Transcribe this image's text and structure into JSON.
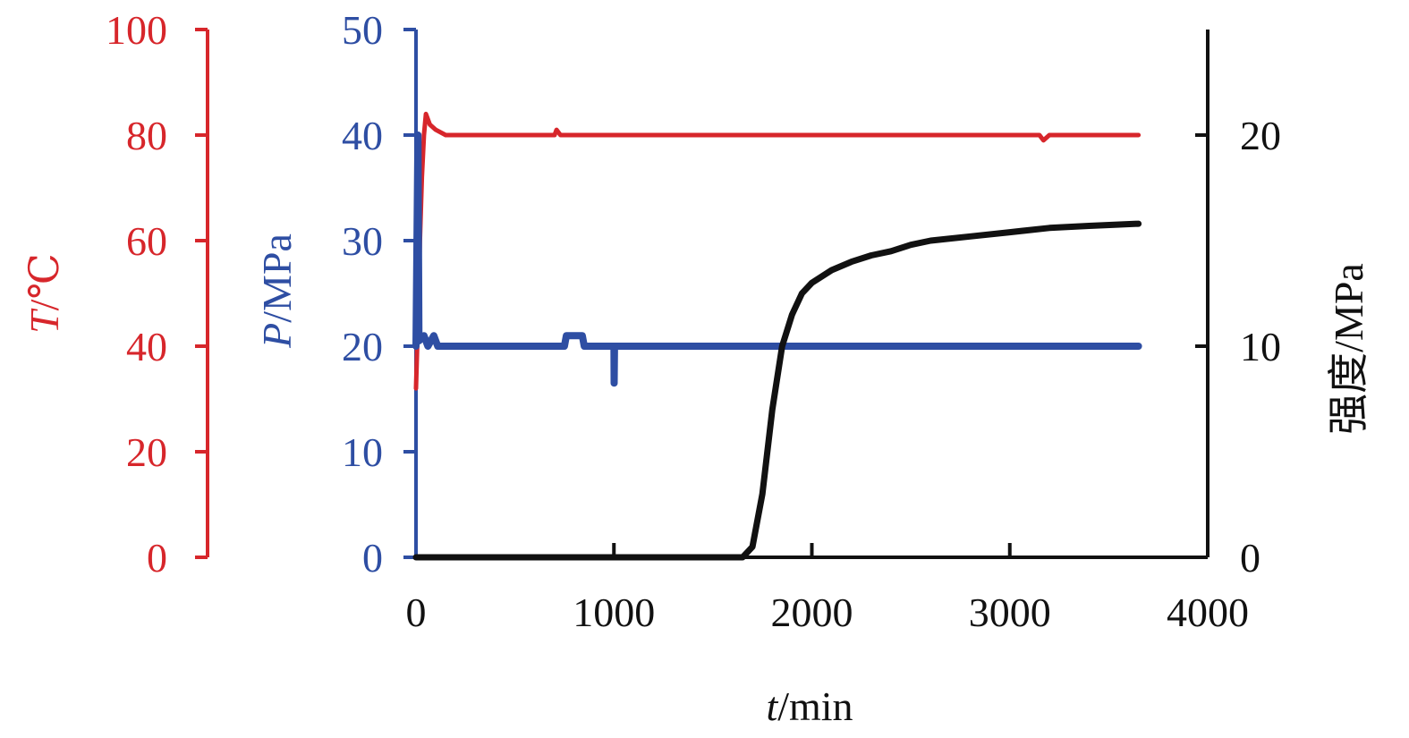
{
  "chart_data": {
    "type": "line",
    "x_axis": {
      "label_italic": "t",
      "label_unit": "/min",
      "range": [
        0,
        4000
      ],
      "ticks": [
        "0",
        "1000",
        "2000",
        "3000",
        "4000"
      ]
    },
    "axes": {
      "temperature": {
        "label_italic": "T",
        "label_unit": "/℃",
        "range": [
          0,
          100
        ],
        "ticks": [
          "0",
          "20",
          "40",
          "60",
          "80",
          "100"
        ],
        "color": "#d7262b"
      },
      "pressure": {
        "label_italic": "P",
        "label_unit": "/MPa",
        "range": [
          0,
          50
        ],
        "ticks": [
          "0",
          "10",
          "20",
          "30",
          "40",
          "50"
        ],
        "color": "#2e4ea3"
      },
      "strength": {
        "label": "强度/MPa",
        "range": [
          0,
          25
        ],
        "ticks": [
          "0",
          "10",
          "20"
        ],
        "color": "#111111"
      }
    },
    "series": [
      {
        "axis": "temperature",
        "color": "#d7262b",
        "points": [
          [
            0,
            32
          ],
          [
            10,
            45
          ],
          [
            20,
            60
          ],
          [
            30,
            72
          ],
          [
            40,
            80
          ],
          [
            50,
            84
          ],
          [
            70,
            82
          ],
          [
            100,
            81
          ],
          [
            150,
            80
          ],
          [
            700,
            80
          ],
          [
            710,
            81
          ],
          [
            730,
            80
          ],
          [
            800,
            80
          ],
          [
            1300,
            80
          ],
          [
            1500,
            80
          ],
          [
            2300,
            80
          ],
          [
            2800,
            80
          ],
          [
            3150,
            80
          ],
          [
            3170,
            79
          ],
          [
            3200,
            80
          ],
          [
            3650,
            80
          ]
        ]
      },
      {
        "axis": "pressure",
        "color": "#2e4ea3",
        "points": [
          [
            0,
            20
          ],
          [
            5,
            30
          ],
          [
            10,
            40
          ],
          [
            15,
            20.5
          ],
          [
            40,
            21
          ],
          [
            60,
            20
          ],
          [
            90,
            21
          ],
          [
            110,
            20
          ],
          [
            750,
            20
          ],
          [
            760,
            21
          ],
          [
            840,
            21
          ],
          [
            850,
            20
          ],
          [
            1000,
            20
          ],
          [
            1001,
            16.5
          ],
          [
            1003,
            20
          ],
          [
            3650,
            20
          ]
        ]
      },
      {
        "axis": "strength",
        "color": "#111111",
        "points": [
          [
            0,
            0
          ],
          [
            1650,
            0
          ],
          [
            1700,
            0.5
          ],
          [
            1750,
            3
          ],
          [
            1800,
            7
          ],
          [
            1850,
            10
          ],
          [
            1900,
            11.5
          ],
          [
            1950,
            12.5
          ],
          [
            2000,
            13
          ],
          [
            2100,
            13.6
          ],
          [
            2200,
            14
          ],
          [
            2300,
            14.3
          ],
          [
            2400,
            14.5
          ],
          [
            2500,
            14.8
          ],
          [
            2600,
            15
          ],
          [
            2800,
            15.2
          ],
          [
            3000,
            15.4
          ],
          [
            3200,
            15.6
          ],
          [
            3400,
            15.7
          ],
          [
            3650,
            15.8
          ]
        ]
      }
    ]
  }
}
